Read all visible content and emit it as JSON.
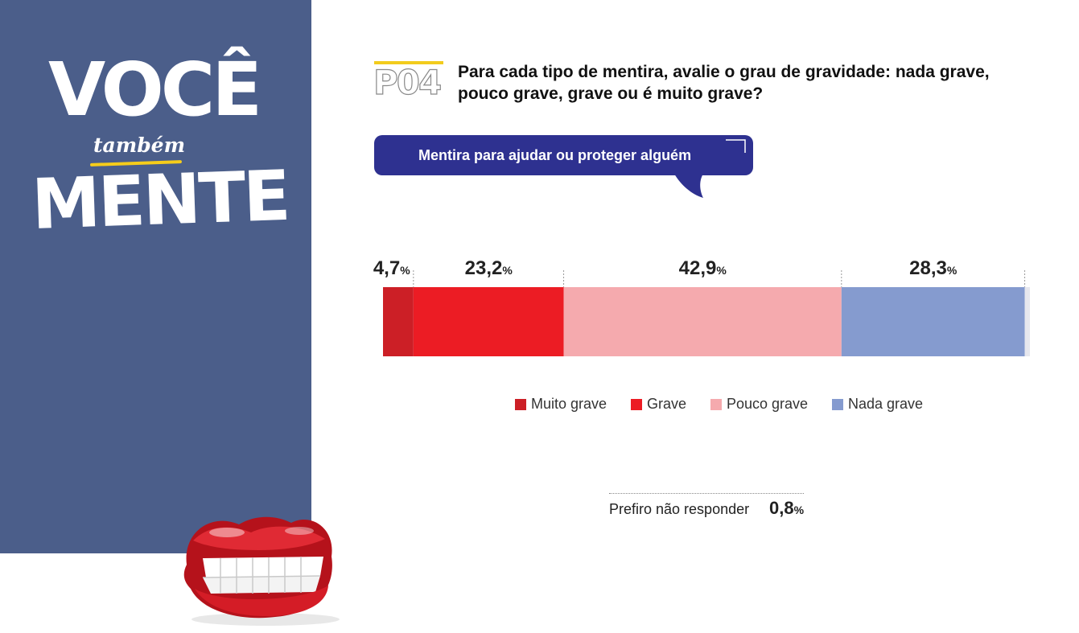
{
  "brand": {
    "line1": "VOCÊ",
    "line2": "também",
    "line3": "MENTE"
  },
  "question": {
    "code": "P04",
    "text": "Para cada tipo de mentira, avalie o grau de gravidade:  nada grave, pouco grave, grave ou é muito grave?"
  },
  "subtitle": "Mentira para ajudar ou proteger alguém",
  "chart_data": {
    "type": "bar",
    "orientation": "horizontal-stacked",
    "title": "Mentira para ajudar ou proteger alguém",
    "unit": "%",
    "series": [
      {
        "name": "Muito grave",
        "value": 4.7,
        "label": "4,7",
        "color": "#cc1f26"
      },
      {
        "name": "Grave",
        "value": 23.2,
        "label": "23,2",
        "color": "#ec1c24"
      },
      {
        "name": "Pouco grave",
        "value": 42.9,
        "label": "42,9",
        "color": "#f5aaae"
      },
      {
        "name": "Nada grave",
        "value": 28.3,
        "label": "28,3",
        "color": "#859bcf"
      },
      {
        "name": "Prefiro não responder",
        "value": 0.8,
        "label": "0,8",
        "color": "#e6e7ee"
      }
    ],
    "legend": [
      "Muito grave",
      "Grave",
      "Pouco grave",
      "Nada grave"
    ],
    "legend_position": "bottom"
  },
  "no_answer": {
    "label": "Prefiro não responder",
    "value": "0,8",
    "unit": "%"
  },
  "colors": {
    "panel": "#4b5e8a",
    "bubble": "#2e3190",
    "accent_yellow": "#f2cc1d"
  }
}
